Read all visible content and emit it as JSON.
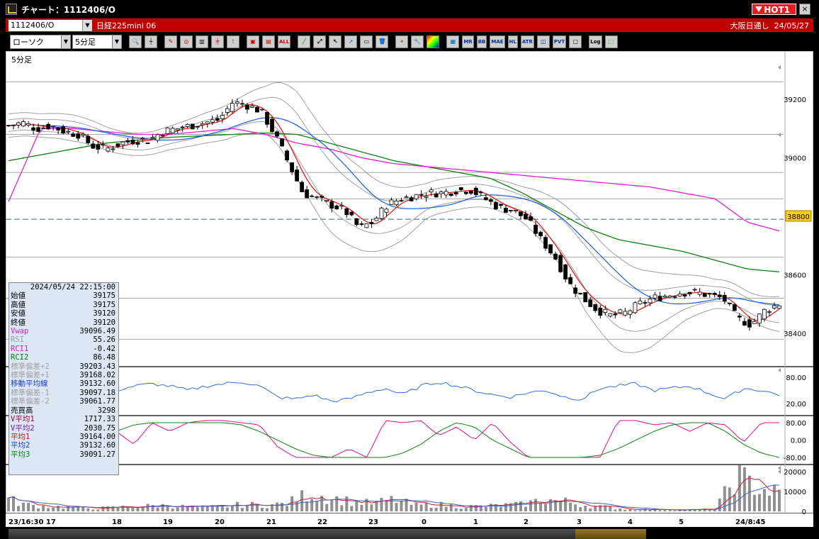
{
  "window": {
    "title": "チャート：1112406/O",
    "hot_label": "HOT1",
    "close_label": "×"
  },
  "infobar": {
    "symbol": "1112406/O",
    "name": "日経225mini 06",
    "session": "大阪日通し",
    "date": "24/05/27"
  },
  "toolbar": {
    "chart_type": "ローソク",
    "interval": "5分足",
    "icons": [
      "zoom-icon",
      "bar-width-icon",
      "draw-icon",
      "search-icon",
      "chart-cursor-icon",
      "split-icon",
      "alert-icon",
      "window-icon",
      "compare-icon",
      "all-icon",
      "line-tool-icon",
      "trend-icon",
      "cursor-icon",
      "arrow-icon",
      "note-icon",
      "trash-icon",
      "settings-icon",
      "wrench-icon",
      "color-icon",
      "chart-mode-icon",
      "ma-icon",
      "bb-icon",
      "mae-icon",
      "hl-icon",
      "atr-icon",
      "pr-icon",
      "pvt-icon",
      "frame-icon",
      "log-icon",
      "export-icon"
    ],
    "labels": {
      "all": "ALL",
      "mr": "MR",
      "bb": "BB",
      "mae": "MAE",
      "hl": "HL",
      "atr": "ATR",
      "pvt": "PVT",
      "log": "Log"
    }
  },
  "chart": {
    "label": "5分足",
    "current_price_label": "38800",
    "price_ticks": [
      "39200",
      "39000",
      "38600",
      "38400"
    ],
    "rsi_ticks": [
      "80.00",
      "20.00"
    ],
    "rci_ticks": [
      "80.00",
      "0.00",
      "-80.00"
    ],
    "volume_ticks": [
      "20000",
      "10000",
      "0"
    ],
    "time_ticks": [
      "23/16:30 17",
      "18",
      "19",
      "20",
      "21",
      "22",
      "23",
      "0",
      "1",
      "2",
      "3",
      "4",
      "5",
      "24/8:45"
    ]
  },
  "ohlc_panel": {
    "datetime": "2024/05/24  22:15:00",
    "rows": [
      {
        "label": "始値",
        "value": "39175",
        "color": "black"
      },
      {
        "label": "高値",
        "value": "39175",
        "color": "black"
      },
      {
        "label": "安値",
        "value": "39120",
        "color": "black"
      },
      {
        "label": "終値",
        "value": "39120",
        "color": "black"
      },
      {
        "label": "Vwap",
        "value": "39096.49",
        "color": "mag"
      },
      {
        "label": "RSI",
        "value": "55.26",
        "color": "grey"
      },
      {
        "label": "RCI1",
        "value": "-0.42",
        "color": "mag"
      },
      {
        "label": "RCI2",
        "value": "86.48",
        "color": "green"
      },
      {
        "label": "標準偏差+2",
        "value": "39203.43",
        "color": "grey"
      },
      {
        "label": "標準偏差+1",
        "value": "39168.02",
        "color": "grey"
      },
      {
        "label": "移動平均線",
        "value": "39132.60",
        "color": "blue"
      },
      {
        "label": "標準偏差-1",
        "value": "39097.18",
        "color": "grey"
      },
      {
        "label": "標準偏差-2",
        "value": "39061.77",
        "color": "grey"
      },
      {
        "label": "売買高",
        "value": "3298",
        "color": "black"
      },
      {
        "label": "V平均1",
        "value": "1717.33",
        "color": "darkred"
      },
      {
        "label": "V平均2",
        "value": "2030.75",
        "color": "purple"
      },
      {
        "label": "平均1",
        "value": "39164.00",
        "color": "red"
      },
      {
        "label": "平均2",
        "value": "39132.60",
        "color": "blue"
      },
      {
        "label": "平均3",
        "value": "39091.27",
        "color": "green"
      }
    ]
  },
  "colors": {
    "vwap": "#e020d0",
    "ma_short": "#e01010",
    "ma_mid": "#1a5ce0",
    "ma_long": "#108010",
    "bands": "#a0a0a0",
    "rsi": "#3070e0",
    "rci_short": "#e0108a",
    "rci_long": "#108010"
  }
}
